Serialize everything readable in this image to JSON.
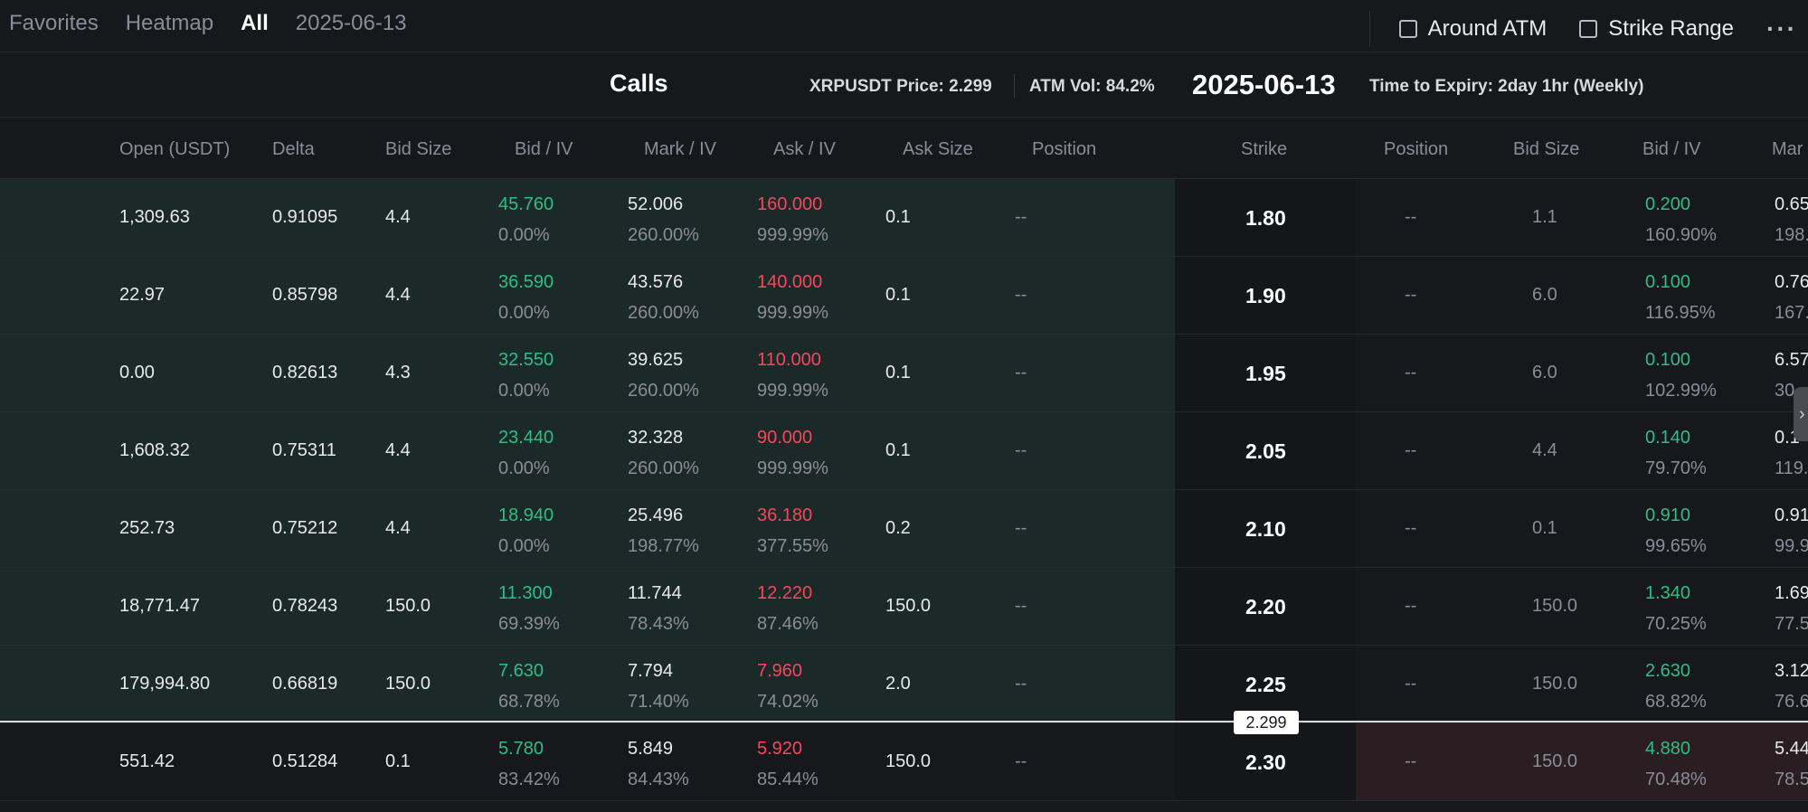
{
  "nav": {
    "favorites": "Favorites",
    "heatmap": "Heatmap",
    "all": "All",
    "date": "2025-06-13"
  },
  "toolbar": {
    "around_atm": "Around ATM",
    "strike_range": "Strike Range",
    "more": "···"
  },
  "info": {
    "calls": "Calls",
    "price": "XRPUSDT Price: 2.299",
    "atm_vol": "ATM Vol: 84.2%",
    "expiry_date": "2025-06-13",
    "time_to_expiry": "Time to Expiry: 2day 1hr (Weekly)"
  },
  "columns": {
    "open": "Open (USDT)",
    "delta": "Delta",
    "bid_size": "Bid Size",
    "bid_iv": "Bid / IV",
    "mark_iv": "Mark / IV",
    "ask_iv": "Ask / IV",
    "ask_size": "Ask Size",
    "position": "Position",
    "strike": "Strike",
    "put_position": "Position",
    "put_bid_size": "Bid Size",
    "put_bid_iv": "Bid / IV",
    "put_mark": "Mar"
  },
  "rows": [
    {
      "open": "1,309.63",
      "delta": "0.91095",
      "bid_size": "4.4",
      "bid": "45.760",
      "bid_iv": "0.00%",
      "mark": "52.006",
      "mark_iv": "260.00%",
      "ask": "160.000",
      "ask_iv": "999.99%",
      "ask_size": "0.1",
      "position": "--",
      "strike": "1.80",
      "put_position": "--",
      "put_bid_size": "1.1",
      "put_bid": "0.200",
      "put_bid_iv": "160.90%",
      "put_mark": "0.65",
      "put_mark_iv": "198."
    },
    {
      "open": "22.97",
      "delta": "0.85798",
      "bid_size": "4.4",
      "bid": "36.590",
      "bid_iv": "0.00%",
      "mark": "43.576",
      "mark_iv": "260.00%",
      "ask": "140.000",
      "ask_iv": "999.99%",
      "ask_size": "0.1",
      "position": "--",
      "strike": "1.90",
      "put_position": "--",
      "put_bid_size": "6.0",
      "put_bid": "0.100",
      "put_bid_iv": "116.95%",
      "put_mark": "0.76",
      "put_mark_iv": "167."
    },
    {
      "open": "0.00",
      "delta": "0.82613",
      "bid_size": "4.3",
      "bid": "32.550",
      "bid_iv": "0.00%",
      "mark": "39.625",
      "mark_iv": "260.00%",
      "ask": "110.000",
      "ask_iv": "999.99%",
      "ask_size": "0.1",
      "position": "--",
      "strike": "1.95",
      "put_position": "--",
      "put_bid_size": "6.0",
      "put_bid": "0.100",
      "put_bid_iv": "102.99%",
      "put_mark": "6.57",
      "put_mark_iv": "30"
    },
    {
      "open": "1,608.32",
      "delta": "0.75311",
      "bid_size": "4.4",
      "bid": "23.440",
      "bid_iv": "0.00%",
      "mark": "32.328",
      "mark_iv": "260.00%",
      "ask": "90.000",
      "ask_iv": "999.99%",
      "ask_size": "0.1",
      "position": "--",
      "strike": "2.05",
      "put_position": "--",
      "put_bid_size": "4.4",
      "put_bid": "0.140",
      "put_bid_iv": "79.70%",
      "put_mark": "0.1",
      "put_mark_iv": "119."
    },
    {
      "open": "252.73",
      "delta": "0.75212",
      "bid_size": "4.4",
      "bid": "18.940",
      "bid_iv": "0.00%",
      "mark": "25.496",
      "mark_iv": "198.77%",
      "ask": "36.180",
      "ask_iv": "377.55%",
      "ask_size": "0.2",
      "position": "--",
      "strike": "2.10",
      "put_position": "--",
      "put_bid_size": "0.1",
      "put_bid": "0.910",
      "put_bid_iv": "99.65%",
      "put_mark": "0.91",
      "put_mark_iv": "99.9"
    },
    {
      "open": "18,771.47",
      "delta": "0.78243",
      "bid_size": "150.0",
      "bid": "11.300",
      "bid_iv": "69.39%",
      "mark": "11.744",
      "mark_iv": "78.43%",
      "ask": "12.220",
      "ask_iv": "87.46%",
      "ask_size": "150.0",
      "position": "--",
      "strike": "2.20",
      "put_position": "--",
      "put_bid_size": "150.0",
      "put_bid": "1.340",
      "put_bid_iv": "70.25%",
      "put_mark": "1.69",
      "put_mark_iv": "77.5"
    },
    {
      "open": "179,994.80",
      "delta": "0.66819",
      "bid_size": "150.0",
      "bid": "7.630",
      "bid_iv": "68.78%",
      "mark": "7.794",
      "mark_iv": "71.40%",
      "ask": "7.960",
      "ask_iv": "74.02%",
      "ask_size": "2.0",
      "position": "--",
      "strike": "2.25",
      "put_position": "--",
      "put_bid_size": "150.0",
      "put_bid": "2.630",
      "put_bid_iv": "68.82%",
      "put_mark": "3.12",
      "put_mark_iv": "76.6"
    },
    {
      "open": "551.42",
      "delta": "0.51284",
      "bid_size": "0.1",
      "bid": "5.780",
      "bid_iv": "83.42%",
      "mark": "5.849",
      "mark_iv": "84.43%",
      "ask": "5.920",
      "ask_iv": "85.44%",
      "ask_size": "150.0",
      "position": "--",
      "strike": "2.30",
      "put_position": "--",
      "put_bid_size": "150.0",
      "put_bid": "4.880",
      "put_bid_iv": "70.48%",
      "put_mark": "5.44",
      "put_mark_iv": "78.5"
    }
  ],
  "price_marker": "2.299",
  "side_handle": "›",
  "colors": {
    "itm_call_bg": "#1b2a28",
    "itm_put_bg": "#2a1e22",
    "bid_green": "#2ebd85",
    "ask_red": "#f6465d"
  }
}
